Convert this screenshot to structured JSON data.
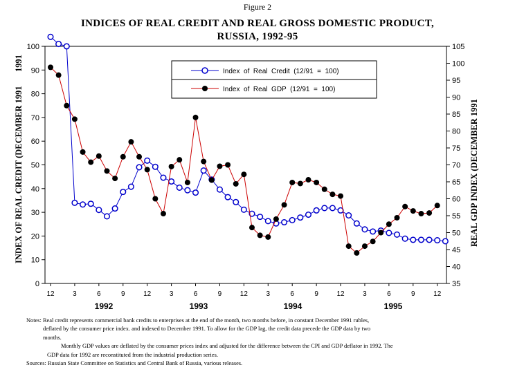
{
  "figure_label": "Figure 2",
  "title_line1": "INDICES OF REAL CREDIT AND REAL GROSS DOMESTIC PRODUCT,",
  "title_line2": "RUSSIA, 1992-95",
  "notes": {
    "line1": "Notes: Real credit represents commercial bank credits to enterprises at the end of the month, two months before, in constant        December 1991 rubles,",
    "line2": "deflated by the consumer price index. and indexed to December 1991. To allow for the GDP lag, the credit data precede the GDP data by two",
    "line3": "months.",
    "line4": "Monthly GDP values are deflated by the consumer prices index and adjusted for the difference between the CPI and GDP deflator in 1992. The",
    "line5": "GDP data for 1992 are reconstituted from the industrial production series.",
    "line6": "Sources: Russian State Committee on Statistics and Central Bank of Russia, various releases."
  },
  "chart_data": {
    "type": "line",
    "ylabel_left": "INDEX   OF   REAL   CREDIT   (DECEMBER   1991",
    "ylabel_left_top": "1991",
    "ylabel_right": "REAL   GDP   INDEX   (DECEMBER   1991",
    "ylim_left": [
      0,
      100
    ],
    "yticks_left": [
      0,
      10,
      20,
      30,
      40,
      50,
      60,
      70,
      80,
      90,
      100
    ],
    "ylim_right": [
      35,
      105
    ],
    "yticks_right": [
      35,
      40,
      45,
      50,
      55,
      60,
      65,
      70,
      75,
      80,
      85,
      90,
      95,
      100,
      105
    ],
    "x_month_labels": [
      "12",
      "3",
      "6",
      "9",
      "12",
      "3",
      "6",
      "9",
      "12",
      "3",
      "6",
      "9",
      "12",
      "3",
      "6",
      "9",
      "12"
    ],
    "year_labels": [
      "1992",
      "1993",
      "1994",
      "1995"
    ],
    "legend_position": "top-right",
    "series": [
      {
        "name": "Index  of  Real  Credit  (12/91  =  100)",
        "axis": "left",
        "color": "#0000cc",
        "marker": "open-circle",
        "values": [
          104,
          101,
          100,
          34,
          33.3,
          33.6,
          31,
          28.3,
          31.6,
          38.6,
          40.8,
          49,
          51.8,
          49.2,
          44.6,
          43,
          40.4,
          39.3,
          38.3,
          47.6,
          43.8,
          39.6,
          36.4,
          34.3,
          31.1,
          29.4,
          28.1,
          26.3,
          25.3,
          25.8,
          26.7,
          27.8,
          29,
          30.8,
          31.8,
          31.8,
          30.8,
          28.7,
          25.3,
          22.8,
          21.9,
          22.3,
          21.3,
          20.6,
          18.9,
          18.4,
          18.4,
          18.4,
          18.2,
          17.8
        ]
      },
      {
        "name": "Index  of  Real  GDP  (12/91  =  100)",
        "axis": "right",
        "color": "#cc0000",
        "marker": "filled-circle",
        "values": [
          98.8,
          96.5,
          87.5,
          83.5,
          73.8,
          70.8,
          72.6,
          68.2,
          66,
          72.4,
          76.8,
          72.4,
          68.6,
          60,
          55.6,
          69.5,
          71.5,
          64.8,
          84,
          71,
          65.5,
          69.6,
          70,
          64.4,
          67.2,
          51.5,
          49.2,
          48.7,
          54,
          58.2,
          64.8,
          64.5,
          65.6,
          64.8,
          62.8,
          61.3,
          60.8,
          46,
          44,
          46,
          47.4,
          50,
          52.5,
          54.4,
          57.7,
          56.4,
          55.6,
          55.8,
          58
        ]
      }
    ]
  }
}
